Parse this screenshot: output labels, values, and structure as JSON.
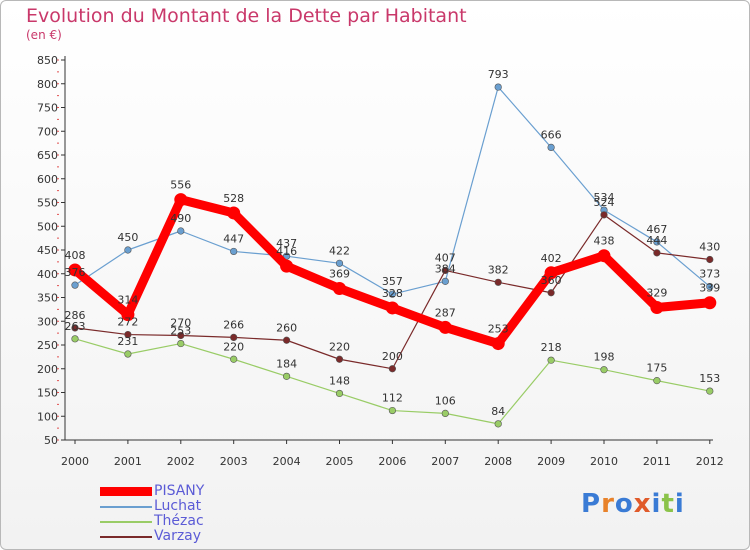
{
  "header": {
    "title": "Evolution du Montant de la Dette par Habitant",
    "subtitle": "(en €)"
  },
  "logo": {
    "text": "Proxiti"
  },
  "chart_data": {
    "type": "line",
    "title": "Evolution du Montant de la Dette par Habitant",
    "subtitle": "(en €)",
    "xlabel": "",
    "ylabel": "",
    "x": [
      2000,
      2001,
      2002,
      2003,
      2004,
      2005,
      2006,
      2007,
      2008,
      2009,
      2010,
      2011,
      2012
    ],
    "ylim": [
      50,
      850
    ],
    "yticks": [
      50,
      100,
      150,
      200,
      250,
      300,
      350,
      400,
      450,
      500,
      550,
      600,
      650,
      700,
      750,
      800,
      850
    ],
    "grid": false,
    "legend_position": "bottom-left",
    "series": [
      {
        "name": "PISANY",
        "color": "#ff0000",
        "values": [
          408,
          314,
          556,
          528,
          416,
          369,
          328,
          287,
          253,
          402,
          438,
          329,
          339
        ]
      },
      {
        "name": "Luchat",
        "color": "#6a9fd0",
        "values": [
          376,
          450,
          490,
          447,
          437,
          422,
          357,
          384,
          793,
          666,
          534,
          467,
          373
        ]
      },
      {
        "name": "Thézac",
        "color": "#99cc66",
        "values": [
          263,
          231,
          253,
          220,
          184,
          148,
          112,
          106,
          84,
          218,
          198,
          175,
          153
        ]
      },
      {
        "name": "Varzay",
        "color": "#7a2a2a",
        "values": [
          286,
          272,
          270,
          266,
          260,
          220,
          200,
          407,
          382,
          360,
          524,
          444,
          430
        ]
      }
    ]
  }
}
